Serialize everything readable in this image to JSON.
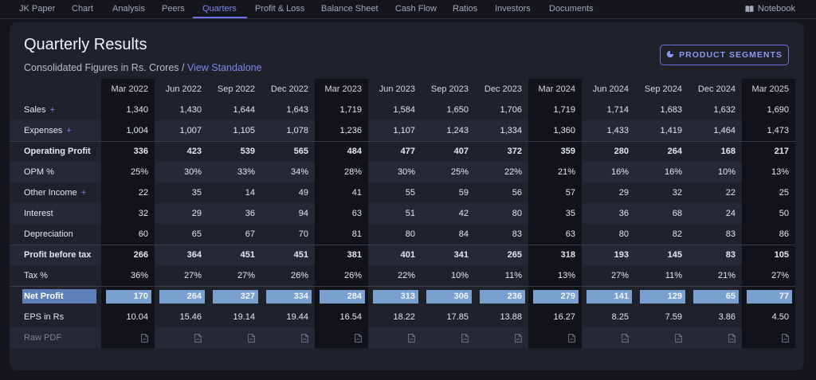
{
  "nav": {
    "items": [
      "JK Paper",
      "Chart",
      "Analysis",
      "Peers",
      "Quarters",
      "Profit & Loss",
      "Balance Sheet",
      "Cash Flow",
      "Ratios",
      "Investors",
      "Documents"
    ],
    "active": "Quarters",
    "notebook_label": "Notebook"
  },
  "header": {
    "title": "Quarterly Results",
    "subtitle_prefix": "Consolidated Figures in Rs. Crores / ",
    "subtitle_link": "View Standalone",
    "segments_button": "PRODUCT SEGMENTS"
  },
  "table": {
    "quarters": [
      "Mar 2022",
      "Jun 2022",
      "Sep 2022",
      "Dec 2022",
      "Mar 2023",
      "Jun 2023",
      "Sep 2023",
      "Dec 2023",
      "Mar 2024",
      "Jun 2024",
      "Sep 2024",
      "Dec 2024",
      "Mar 2025"
    ],
    "rows": [
      {
        "label": "Sales",
        "expandable": true,
        "values": [
          "1,340",
          "1,430",
          "1,644",
          "1,643",
          "1,719",
          "1,584",
          "1,650",
          "1,706",
          "1,719",
          "1,714",
          "1,683",
          "1,632",
          "1,690"
        ]
      },
      {
        "label": "Expenses",
        "expandable": true,
        "values": [
          "1,004",
          "1,007",
          "1,105",
          "1,078",
          "1,236",
          "1,107",
          "1,243",
          "1,334",
          "1,360",
          "1,433",
          "1,419",
          "1,464",
          "1,473"
        ]
      },
      {
        "label": "Operating Profit",
        "expandable": false,
        "values": [
          "336",
          "423",
          "539",
          "565",
          "484",
          "477",
          "407",
          "372",
          "359",
          "280",
          "264",
          "168",
          "217"
        ]
      },
      {
        "label": "OPM %",
        "expandable": false,
        "values": [
          "25%",
          "30%",
          "33%",
          "34%",
          "28%",
          "30%",
          "25%",
          "22%",
          "21%",
          "16%",
          "16%",
          "10%",
          "13%"
        ]
      },
      {
        "label": "Other Income",
        "expandable": true,
        "values": [
          "22",
          "35",
          "14",
          "49",
          "41",
          "55",
          "59",
          "56",
          "57",
          "29",
          "32",
          "22",
          "25"
        ]
      },
      {
        "label": "Interest",
        "expandable": false,
        "values": [
          "32",
          "29",
          "36",
          "94",
          "63",
          "51",
          "42",
          "80",
          "35",
          "36",
          "68",
          "24",
          "50"
        ]
      },
      {
        "label": "Depreciation",
        "expandable": false,
        "values": [
          "60",
          "65",
          "67",
          "70",
          "81",
          "80",
          "84",
          "83",
          "63",
          "80",
          "82",
          "83",
          "86"
        ]
      },
      {
        "label": "Profit before tax",
        "expandable": false,
        "values": [
          "266",
          "364",
          "451",
          "451",
          "381",
          "401",
          "341",
          "265",
          "318",
          "193",
          "145",
          "83",
          "105"
        ]
      },
      {
        "label": "Tax %",
        "expandable": false,
        "values": [
          "36%",
          "27%",
          "27%",
          "26%",
          "26%",
          "22%",
          "10%",
          "11%",
          "13%",
          "27%",
          "11%",
          "21%",
          "27%"
        ]
      },
      {
        "label": "Net Profit",
        "expandable": false,
        "values": [
          "170",
          "264",
          "327",
          "334",
          "284",
          "313",
          "306",
          "236",
          "279",
          "141",
          "129",
          "65",
          "77"
        ]
      },
      {
        "label": "EPS in Rs",
        "expandable": false,
        "values": [
          "10.04",
          "15.46",
          "19.14",
          "19.44",
          "16.54",
          "18.22",
          "17.85",
          "13.88",
          "16.27",
          "8.25",
          "7.59",
          "3.86",
          "4.50"
        ]
      }
    ],
    "raw_pdf_label": "Raw PDF",
    "net_profit_fill": [
      1,
      1,
      1,
      1,
      1,
      1,
      1,
      1,
      1,
      1,
      1,
      1,
      1
    ]
  },
  "colors": {
    "accent": "#6c74e6",
    "net_profit_bar": "#7aa0cf",
    "background": "#15161c",
    "card": "#1f212b"
  },
  "icons": {
    "notebook": "book-icon",
    "segments": "pie-chart-icon",
    "raw_pdf": "pdf-file-icon",
    "expand": "plus-icon"
  }
}
